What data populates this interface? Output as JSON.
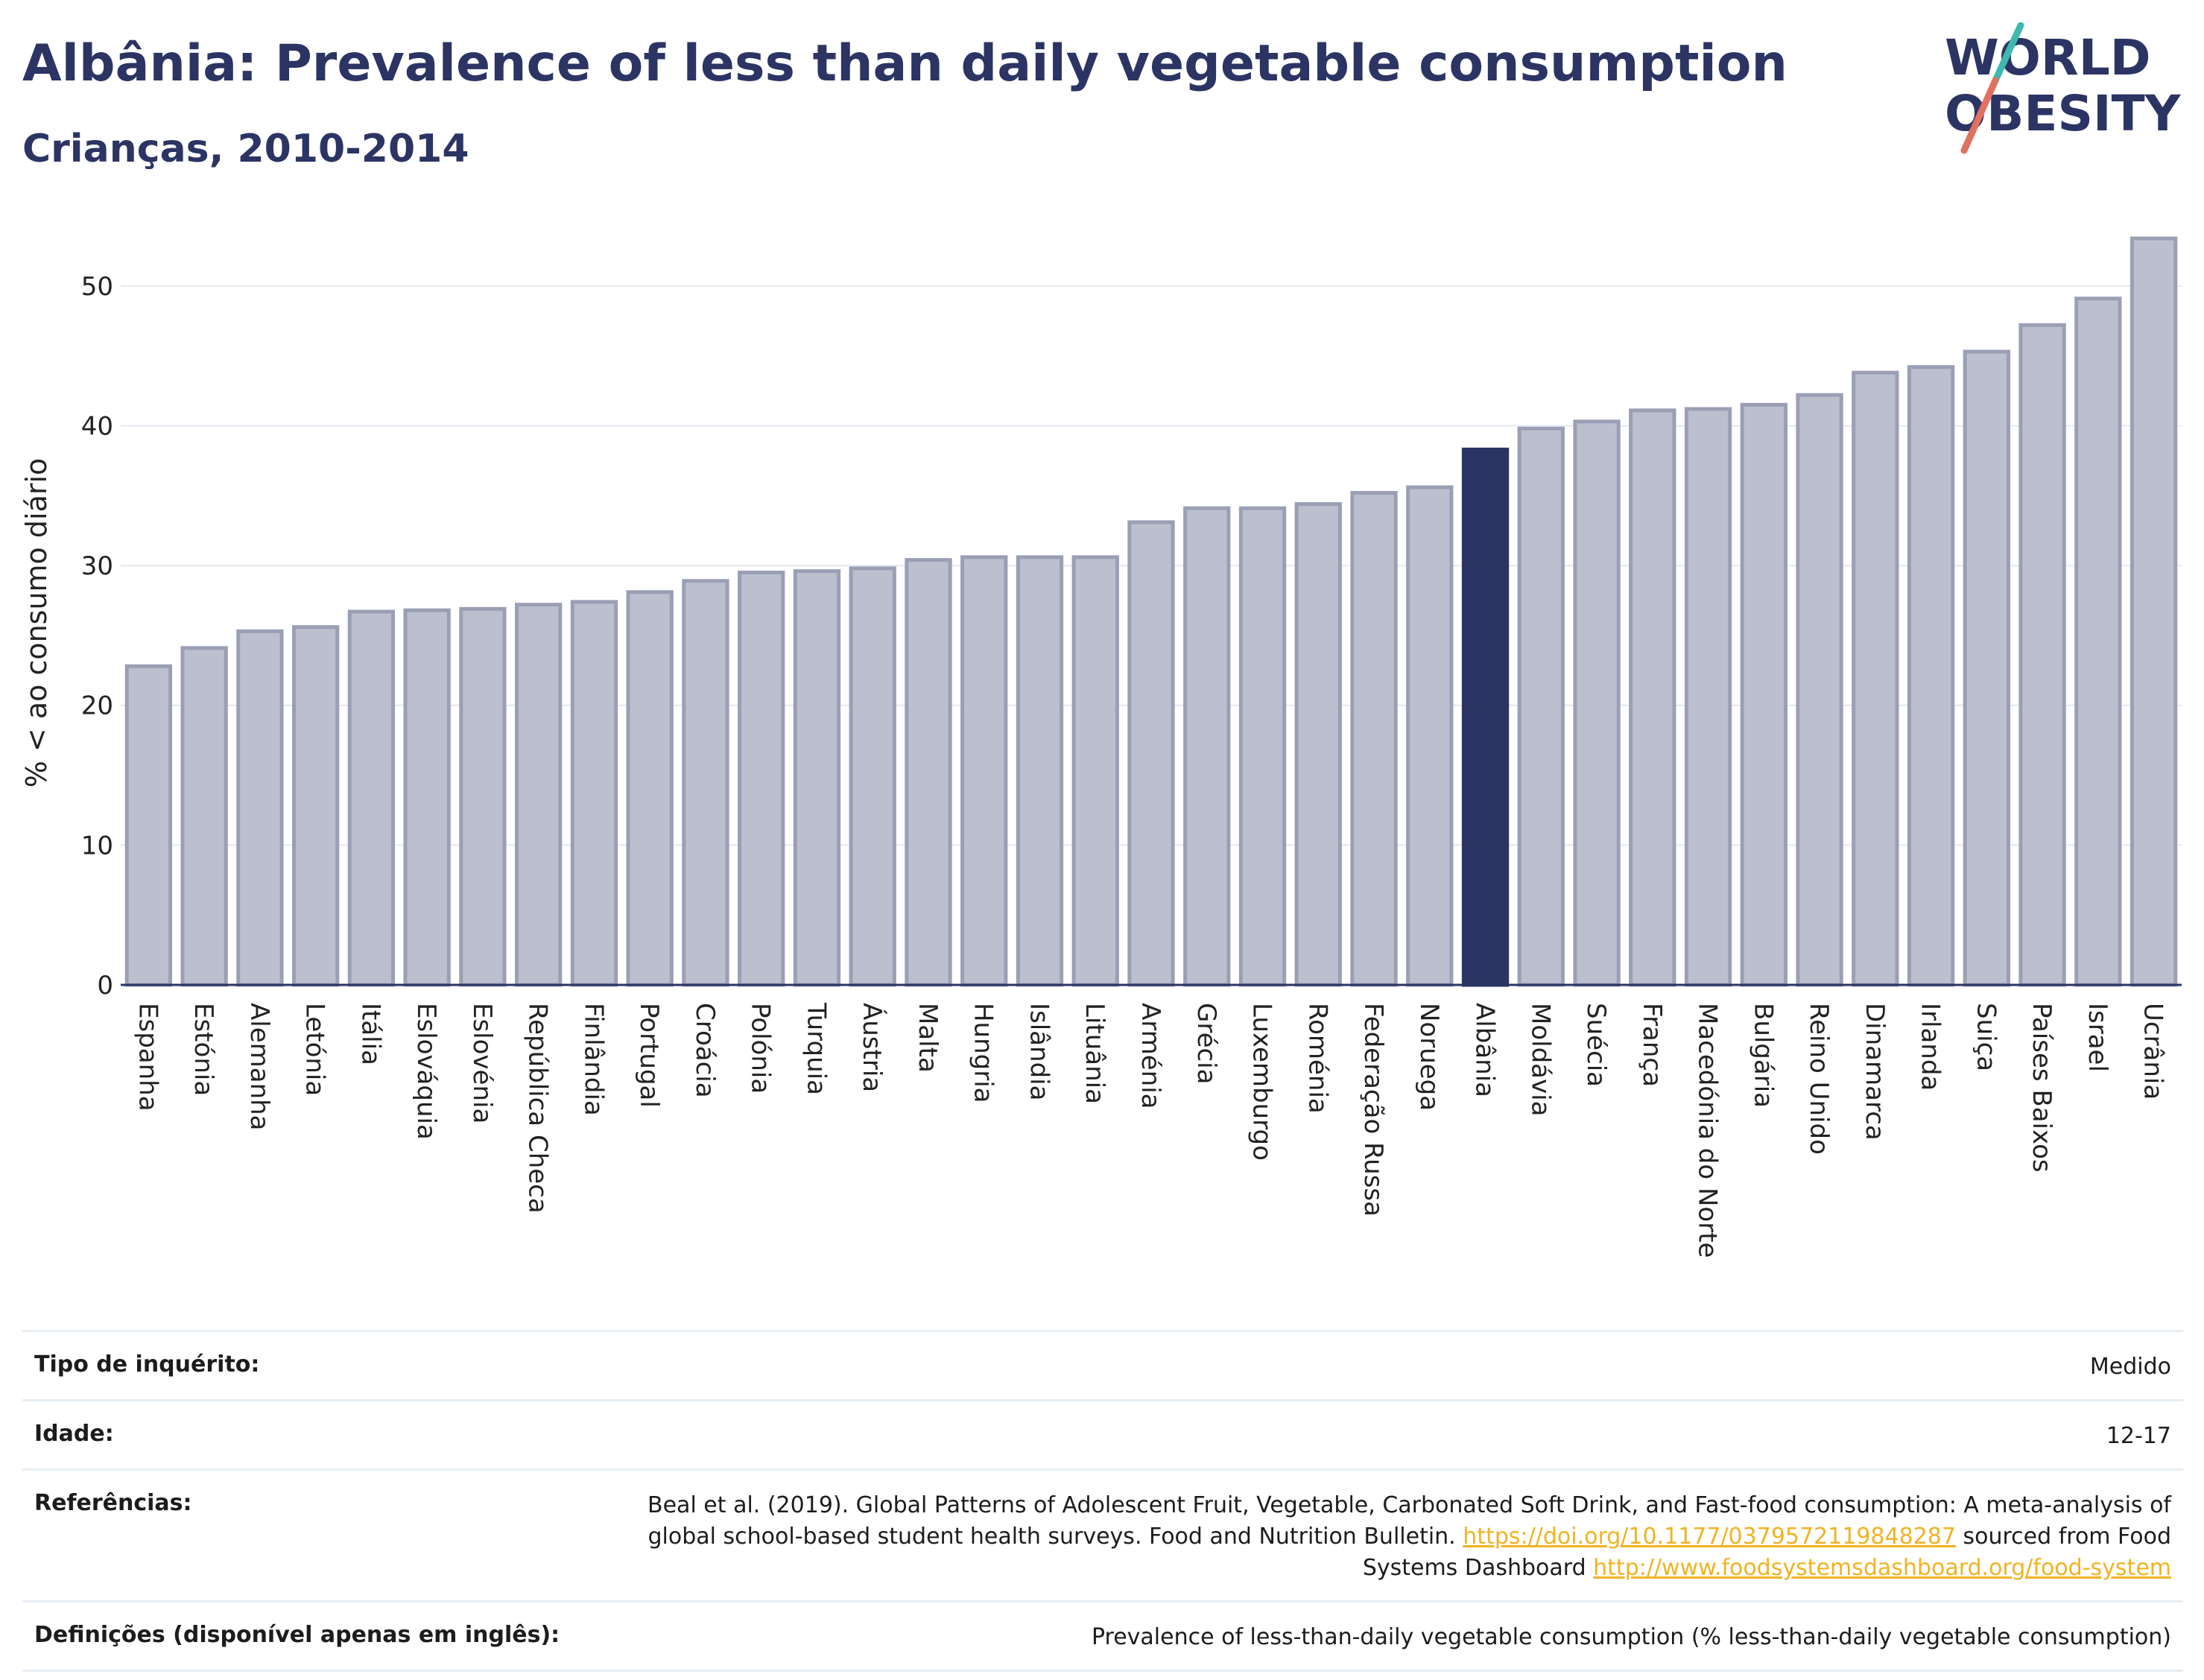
{
  "header": {
    "title": "Albânia: Prevalence of less than daily vegetable consumption",
    "subtitle": "Crianças, 2010-2014"
  },
  "logo": {
    "line1": "WORLD",
    "line2": "OBESITY",
    "accent_colors": [
      "#3fb8b0",
      "#e0715f"
    ]
  },
  "chart_data": {
    "type": "bar",
    "title": "",
    "ylabel": "% < ao consumo diário",
    "xlabel": "",
    "ylim": [
      0,
      55
    ],
    "yticks": [
      0,
      10,
      20,
      30,
      40,
      50
    ],
    "grid": true,
    "highlight": "Albânia",
    "colors": {
      "default": "#bcbfcd",
      "default_edge": "#9a9fb5",
      "highlight": "#2b3463"
    },
    "categories": [
      "Espanha",
      "Estónia",
      "Alemanha",
      "Letónia",
      "Itália",
      "Eslováquia",
      "Eslovénia",
      "República Checa",
      "Finlândia",
      "Portugal",
      "Croácia",
      "Polónia",
      "Turquia",
      "Áustria",
      "Malta",
      "Hungria",
      "Islândia",
      "Lituânia",
      "Arménia",
      "Grécia",
      "Luxemburgo",
      "Roménia",
      "Federação Russa",
      "Noruega",
      "Albânia",
      "Moldávia",
      "Suécia",
      "França",
      "Macedónia do Norte",
      "Bulgária",
      "Reino Unido",
      "Dinamarca",
      "Irlanda",
      "Suiça",
      "Países Baixos",
      "Israel",
      "Ucrânia"
    ],
    "values": [
      22.8,
      24.1,
      25.3,
      25.6,
      26.7,
      26.8,
      26.9,
      27.2,
      27.4,
      28.1,
      28.9,
      29.5,
      29.6,
      29.8,
      30.4,
      30.6,
      30.6,
      30.6,
      33.1,
      34.1,
      34.1,
      34.4,
      35.2,
      35.6,
      38.3,
      39.8,
      40.3,
      41.1,
      41.2,
      41.5,
      42.2,
      43.8,
      44.2,
      45.3,
      47.2,
      49.1,
      53.4
    ]
  },
  "info": {
    "survey_type_label": "Tipo de inquérito:",
    "survey_type_value": "Medido",
    "age_label": "Idade:",
    "age_value": "12-17",
    "references_label": "Referências:",
    "references_text_1": "Beal et al. (2019). Global Patterns of Adolescent Fruit, Vegetable, Carbonated Soft Drink, and Fast-food consumption: A meta-analysis of global school-based student health surveys. Food and Nutrition Bulletin.",
    "references_link_1": "https://doi.org/10.1177/0379572119848287",
    "references_text_2": "sourced from Food Systems Dashboard",
    "references_link_2": "http://www.foodsystemsdashboard.org/food-system",
    "definitions_label": "Definições (disponível apenas em inglês):",
    "definitions_value": "Prevalence of less-than-daily vegetable consumption (% less-than-daily vegetable consumption)"
  }
}
